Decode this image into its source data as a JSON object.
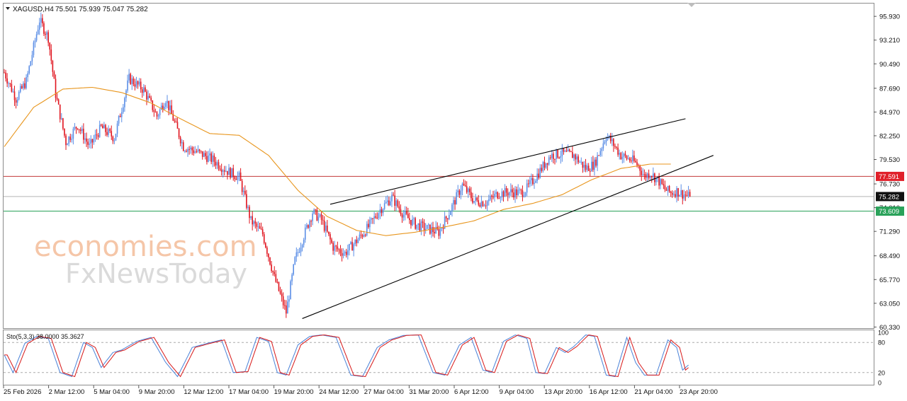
{
  "header": {
    "symbol_label": "XAGUSD,H4",
    "ohlc_label": "75.501 75.939 75.047 75.282"
  },
  "watermark": {
    "line1": "economies.com",
    "line2": "FxNewsToday"
  },
  "colors": {
    "bull": "#5b8ee6",
    "bear": "#e0141e",
    "ma": "#e8961e",
    "resistance_line": "#c23a3a",
    "support_line": "#2aa25a",
    "current_price_line": "#b4b4b4",
    "stoch_main": "#4a82d8",
    "stoch_signal": "#d81818"
  },
  "chart_data": {
    "type": "candlestick",
    "symbol": "XAGUSD",
    "timeframe": "H4",
    "price_axis": {
      "ylim": [
        60.2,
        97.4
      ],
      "ticks": [
        "95.930",
        "93.210",
        "90.490",
        "87.690",
        "84.970",
        "82.250",
        "79.530",
        "76.730",
        "74.010",
        "71.290",
        "68.490",
        "65.770",
        "63.050",
        "60.330"
      ]
    },
    "price_tags": [
      {
        "label": "77.591",
        "value": 77.591,
        "color": "#e0202a"
      },
      {
        "label": "75.282",
        "value": 75.282,
        "color": "#111111"
      },
      {
        "label": "73.609",
        "value": 73.609,
        "color": "#2aa25a"
      }
    ],
    "levels": {
      "resistance": 77.591,
      "current": 75.282,
      "support": 73.609
    },
    "x_labels": [
      "25 Feb 2026",
      "2 Mar 12:00",
      "5 Mar 04:00",
      "9 Mar 20:00",
      "12 Mar 12:00",
      "17 Mar 04:00",
      "19 Mar 20:00",
      "24 Mar 12:00",
      "27 Mar 04:00",
      "31 Mar 20:00",
      "6 Apr 12:00",
      "9 Apr 04:00",
      "13 Apr 20:00",
      "16 Apr 12:00",
      "21 Apr 04:00",
      "23 Apr 20:00"
    ],
    "path_anchors": [
      [
        0,
        89.5
      ],
      [
        8,
        86.5
      ],
      [
        15,
        88.5
      ],
      [
        24,
        95.5
      ],
      [
        30,
        93.5
      ],
      [
        35,
        87.0
      ],
      [
        42,
        81.5
      ],
      [
        50,
        83.5
      ],
      [
        58,
        81.0
      ],
      [
        66,
        83.2
      ],
      [
        75,
        82.0
      ],
      [
        85,
        88.8
      ],
      [
        95,
        87.5
      ],
      [
        104,
        84.5
      ],
      [
        110,
        86.5
      ],
      [
        122,
        81.0
      ],
      [
        130,
        80.5
      ],
      [
        142,
        79.5
      ],
      [
        152,
        78.2
      ],
      [
        160,
        77.5
      ],
      [
        168,
        72.5
      ],
      [
        176,
        71.0
      ],
      [
        184,
        66.0
      ],
      [
        192,
        62.0
      ],
      [
        198,
        68.0
      ],
      [
        204,
        70.8
      ],
      [
        210,
        73.5
      ],
      [
        216,
        72.6
      ],
      [
        224,
        69.5
      ],
      [
        232,
        68.8
      ],
      [
        240,
        70.2
      ],
      [
        248,
        71.8
      ],
      [
        256,
        73.8
      ],
      [
        264,
        75.2
      ],
      [
        272,
        73.2
      ],
      [
        280,
        72.1
      ],
      [
        288,
        71.6
      ],
      [
        296,
        71.2
      ],
      [
        304,
        73.8
      ],
      [
        312,
        76.6
      ],
      [
        320,
        74.8
      ],
      [
        328,
        74.6
      ],
      [
        336,
        75.6
      ],
      [
        344,
        75.8
      ],
      [
        352,
        75.7
      ],
      [
        356,
        76.2
      ],
      [
        364,
        78.0
      ],
      [
        372,
        80.0
      ],
      [
        380,
        80.2
      ],
      [
        388,
        80.0
      ],
      [
        396,
        78.5
      ],
      [
        402,
        79.0
      ],
      [
        410,
        82.3
      ],
      [
        414,
        81.5
      ],
      [
        420,
        80.0
      ],
      [
        428,
        79.4
      ],
      [
        432,
        78.8
      ],
      [
        436,
        77.6
      ],
      [
        440,
        78.0
      ],
      [
        446,
        77.0
      ],
      [
        450,
        76.1
      ],
      [
        454,
        75.7
      ],
      [
        458,
        75.9
      ],
      [
        462,
        75.6
      ],
      [
        466,
        75.3
      ]
    ],
    "moving_average": {
      "type": "MA",
      "anchors": [
        [
          0,
          81.0
        ],
        [
          20,
          85.5
        ],
        [
          40,
          87.6
        ],
        [
          60,
          87.8
        ],
        [
          80,
          87.2
        ],
        [
          100,
          86.0
        ],
        [
          120,
          84.2
        ],
        [
          140,
          82.5
        ],
        [
          160,
          82.3
        ],
        [
          180,
          80.0
        ],
        [
          200,
          76.0
        ],
        [
          220,
          73.0
        ],
        [
          240,
          71.4
        ],
        [
          260,
          70.8
        ],
        [
          280,
          71.2
        ],
        [
          300,
          71.8
        ],
        [
          320,
          72.5
        ],
        [
          340,
          73.8
        ],
        [
          360,
          74.5
        ],
        [
          380,
          75.5
        ],
        [
          400,
          77.2
        ],
        [
          420,
          78.5
        ],
        [
          440,
          79.0
        ],
        [
          454,
          79.0
        ]
      ]
    },
    "trendlines": [
      {
        "name": "upper-trendline",
        "points": [
          [
            222,
            74.4
          ],
          [
            464,
            84.2
          ]
        ]
      },
      {
        "name": "lower-trendline",
        "points": [
          [
            203,
            61.3
          ],
          [
            483,
            80.0
          ]
        ]
      }
    ],
    "stochastic": {
      "label": "Sto(5,3,3) 38.0000 35.3627",
      "ylim": [
        0,
        100
      ],
      "levels": [
        80,
        20
      ],
      "ticks": [
        "100",
        "80",
        "20",
        "0"
      ],
      "cycles": [
        [
          0,
          55
        ],
        [
          6,
          20
        ],
        [
          14,
          78
        ],
        [
          22,
          92
        ],
        [
          30,
          88
        ],
        [
          38,
          20
        ],
        [
          46,
          12
        ],
        [
          54,
          80
        ],
        [
          60,
          70
        ],
        [
          66,
          30
        ],
        [
          74,
          60
        ],
        [
          80,
          65
        ],
        [
          90,
          82
        ],
        [
          100,
          90
        ],
        [
          110,
          40
        ],
        [
          118,
          12
        ],
        [
          128,
          70
        ],
        [
          138,
          78
        ],
        [
          148,
          85
        ],
        [
          156,
          20
        ],
        [
          164,
          22
        ],
        [
          172,
          90
        ],
        [
          180,
          82
        ],
        [
          186,
          20
        ],
        [
          192,
          15
        ],
        [
          200,
          75
        ],
        [
          208,
          92
        ],
        [
          216,
          95
        ],
        [
          226,
          90
        ],
        [
          236,
          15
        ],
        [
          244,
          12
        ],
        [
          254,
          70
        ],
        [
          262,
          85
        ],
        [
          272,
          94
        ],
        [
          282,
          95
        ],
        [
          292,
          20
        ],
        [
          300,
          15
        ],
        [
          310,
          75
        ],
        [
          318,
          90
        ],
        [
          326,
          25
        ],
        [
          332,
          20
        ],
        [
          340,
          82
        ],
        [
          348,
          95
        ],
        [
          356,
          88
        ],
        [
          362,
          20
        ],
        [
          368,
          18
        ],
        [
          376,
          70
        ],
        [
          382,
          60
        ],
        [
          388,
          72
        ],
        [
          396,
          95
        ],
        [
          402,
          92
        ],
        [
          410,
          15
        ],
        [
          416,
          12
        ],
        [
          424,
          90
        ],
        [
          430,
          40
        ],
        [
          436,
          15
        ],
        [
          444,
          15
        ],
        [
          452,
          85
        ],
        [
          458,
          70
        ],
        [
          462,
          25
        ],
        [
          466,
          35
        ]
      ]
    }
  }
}
